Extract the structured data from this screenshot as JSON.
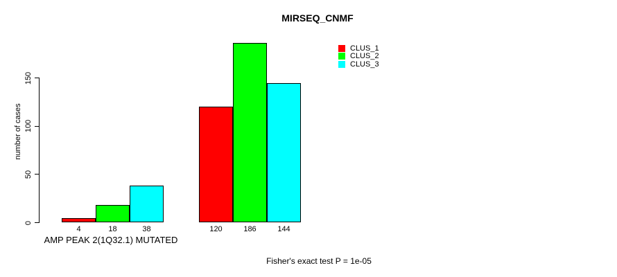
{
  "chart_data": {
    "type": "bar",
    "title": "MIRSEQ_CNMF",
    "ylabel": "number of cases",
    "ylim": [
      0,
      150
    ],
    "yticks": [
      0,
      50,
      100,
      150
    ],
    "grid": false,
    "legend_position": "top-right",
    "categories": [
      "AMP PEAK 2(1Q32.1) MUTATED",
      ""
    ],
    "series": [
      {
        "name": "CLUS_1",
        "color": "#ff0000",
        "values": [
          4,
          120
        ]
      },
      {
        "name": "CLUS_2",
        "color": "#00ff00",
        "values": [
          18,
          186
        ]
      },
      {
        "name": "CLUS_3",
        "color": "#00ffff",
        "values": [
          38,
          144
        ]
      }
    ],
    "caption": "Fisher's exact test P = 1e-05"
  }
}
